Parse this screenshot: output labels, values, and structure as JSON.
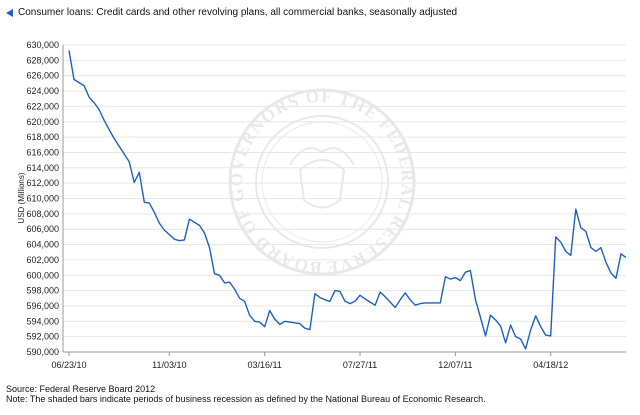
{
  "legend": {
    "label": "Consumer loans: Credit cards and other revolving plans, all commercial banks, seasonally adjusted",
    "color": "#1f5fbf"
  },
  "footer": {
    "source": "Source: Federal Reserve Board 2012",
    "note": "Note: The shaded bars indicate periods of business recession as defined by the National Bureau of Economic Research."
  },
  "watermark": "BOARD OF GOVERNORS OF THE FEDERAL RESERVE SYSTEM",
  "chart_data": {
    "type": "line",
    "title": "",
    "xlabel": "",
    "ylabel": "USD (Millions)",
    "ylim": [
      590000,
      630000
    ],
    "yticks": [
      590000,
      592000,
      594000,
      596000,
      598000,
      600000,
      602000,
      604000,
      606000,
      608000,
      610000,
      612000,
      614000,
      616000,
      618000,
      620000,
      622000,
      624000,
      626000,
      628000,
      630000
    ],
    "ytick_labels": [
      "590,000",
      "592,000",
      "594,000",
      "596,000",
      "598,000",
      "600,000",
      "602,000",
      "604,000",
      "606,000",
      "608,000",
      "610,000",
      "612,000",
      "614,000",
      "616,000",
      "618,000",
      "620,000",
      "622,000",
      "624,000",
      "626,000",
      "628,000",
      "630,000"
    ],
    "xtick_labels": [
      "06/23/10",
      "11/03/10",
      "03/16/11",
      "07/27/11",
      "12/07/11",
      "04/18/12"
    ],
    "xtick_index": [
      0,
      20,
      39,
      58,
      77,
      96
    ],
    "grid": true,
    "series": [
      {
        "color": "#1f5fbf",
        "values": [
          629300,
          625500,
          625100,
          624700,
          623200,
          622500,
          621600,
          620200,
          619000,
          617800,
          616800,
          615800,
          614800,
          612100,
          613400,
          609500,
          609400,
          608200,
          606800,
          605900,
          605300,
          604700,
          604500,
          604600,
          607300,
          606900,
          606500,
          605500,
          603600,
          600200,
          600000,
          599000,
          599100,
          598200,
          597000,
          596600,
          594800,
          594000,
          593900,
          593300,
          595400,
          594300,
          593600,
          594000,
          593900,
          593800,
          593700,
          593100,
          592900,
          597600,
          597100,
          596800,
          596600,
          598000,
          597900,
          596600,
          596300,
          596600,
          597400,
          596900,
          596500,
          596100,
          597800,
          597200,
          596500,
          595800,
          596800,
          597700,
          596800,
          596100,
          596300,
          596400,
          596400,
          596400,
          596400,
          599800,
          599500,
          599700,
          599300,
          600400,
          600600,
          596800,
          594500,
          592100,
          594800,
          594200,
          593400,
          591200,
          593500,
          592000,
          591700,
          590400,
          592900,
          594700,
          593300,
          592200,
          592100,
          605000,
          604300,
          603100,
          602600,
          608600,
          606200,
          605700,
          603600,
          603100,
          603600,
          601700,
          600300,
          599600,
          602800,
          602300
        ]
      }
    ]
  }
}
